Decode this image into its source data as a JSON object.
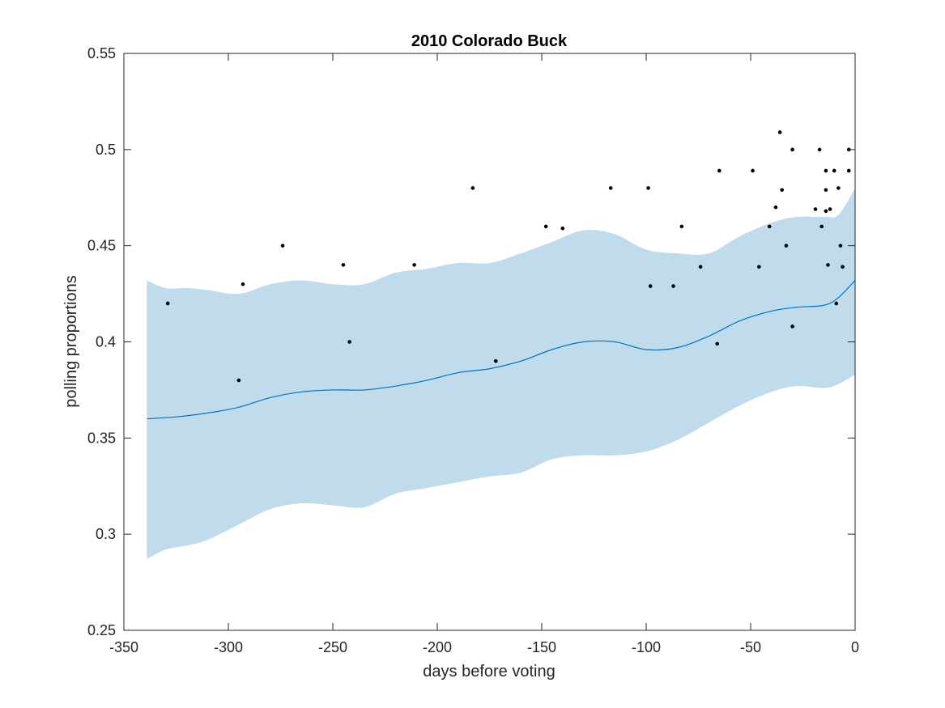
{
  "chart_data": {
    "type": "line",
    "title": "2010 Colorado Buck",
    "xlabel": "days before voting",
    "ylabel": "polling proportions",
    "xlim": [
      -350,
      0
    ],
    "ylim": [
      0.25,
      0.55
    ],
    "xticks": [
      -350,
      -300,
      -250,
      -200,
      -150,
      -100,
      -50,
      0
    ],
    "yticks": [
      0.25,
      0.3,
      0.35,
      0.4,
      0.45,
      0.5,
      0.55
    ],
    "xtick_labels": [
      "-350",
      "-300",
      "-250",
      "-200",
      "-150",
      "-100",
      "-50",
      "0"
    ],
    "ytick_labels": [
      "0.25",
      "0.3",
      "0.35",
      "0.4",
      "0.45",
      "0.5",
      "0.55"
    ],
    "grid": false,
    "colors": {
      "band": "#c0dcec",
      "line": "#0072bd",
      "points": "#000000",
      "axes": "#262626"
    },
    "series": [
      {
        "type": "line",
        "x": [
          -339,
          -325,
          -310,
          -295,
          -280,
          -265,
          -250,
          -235,
          -220,
          -205,
          -190,
          -175,
          -160,
          -145,
          -130,
          -115,
          -100,
          -85,
          -70,
          -55,
          -40,
          -28,
          -15,
          -8,
          0
        ],
        "y": [
          0.36,
          0.361,
          0.363,
          0.366,
          0.371,
          0.374,
          0.375,
          0.375,
          0.377,
          0.38,
          0.384,
          0.386,
          0.39,
          0.396,
          0.4,
          0.4,
          0.396,
          0.397,
          0.403,
          0.411,
          0.416,
          0.418,
          0.419,
          0.423,
          0.432
        ]
      },
      {
        "type": "area",
        "x": [
          -339,
          -330,
          -320,
          -310,
          -295,
          -280,
          -265,
          -250,
          -235,
          -220,
          -205,
          -190,
          -175,
          -160,
          -145,
          -130,
          -115,
          -100,
          -85,
          -70,
          -55,
          -40,
          -28,
          -15,
          -8,
          0
        ],
        "upper": [
          0.432,
          0.428,
          0.428,
          0.427,
          0.425,
          0.43,
          0.432,
          0.43,
          0.43,
          0.436,
          0.438,
          0.441,
          0.441,
          0.446,
          0.452,
          0.458,
          0.456,
          0.448,
          0.446,
          0.446,
          0.455,
          0.462,
          0.465,
          0.465,
          0.466,
          0.48
        ],
        "lower": [
          0.287,
          0.292,
          0.294,
          0.297,
          0.305,
          0.313,
          0.316,
          0.315,
          0.314,
          0.321,
          0.324,
          0.327,
          0.33,
          0.332,
          0.339,
          0.341,
          0.341,
          0.343,
          0.349,
          0.358,
          0.367,
          0.374,
          0.377,
          0.376,
          0.378,
          0.383
        ]
      },
      {
        "type": "scatter",
        "points": [
          [
            -329,
            0.42
          ],
          [
            -295,
            0.38
          ],
          [
            -293,
            0.43
          ],
          [
            -274,
            0.45
          ],
          [
            -245,
            0.44
          ],
          [
            -242,
            0.4
          ],
          [
            -211,
            0.44
          ],
          [
            -183,
            0.48
          ],
          [
            -172,
            0.39
          ],
          [
            -148,
            0.46
          ],
          [
            -140,
            0.459
          ],
          [
            -117,
            0.48
          ],
          [
            -99,
            0.48
          ],
          [
            -98,
            0.429
          ],
          [
            -87,
            0.429
          ],
          [
            -83,
            0.46
          ],
          [
            -74,
            0.439
          ],
          [
            -66,
            0.399
          ],
          [
            -65,
            0.489
          ],
          [
            -49,
            0.489
          ],
          [
            -46,
            0.439
          ],
          [
            -41,
            0.46
          ],
          [
            -38,
            0.47
          ],
          [
            -36,
            0.509
          ],
          [
            -35,
            0.479
          ],
          [
            -33,
            0.45
          ],
          [
            -30,
            0.5
          ],
          [
            -30,
            0.408
          ],
          [
            -19,
            0.469
          ],
          [
            -17,
            0.5
          ],
          [
            -16,
            0.46
          ],
          [
            -14,
            0.489
          ],
          [
            -14,
            0.479
          ],
          [
            -14,
            0.468
          ],
          [
            -13,
            0.44
          ],
          [
            -12,
            0.469
          ],
          [
            -10,
            0.489
          ],
          [
            -9,
            0.42
          ],
          [
            -8,
            0.48
          ],
          [
            -7,
            0.45
          ],
          [
            -6,
            0.439
          ],
          [
            -3,
            0.5
          ],
          [
            -3,
            0.489
          ]
        ]
      }
    ]
  }
}
